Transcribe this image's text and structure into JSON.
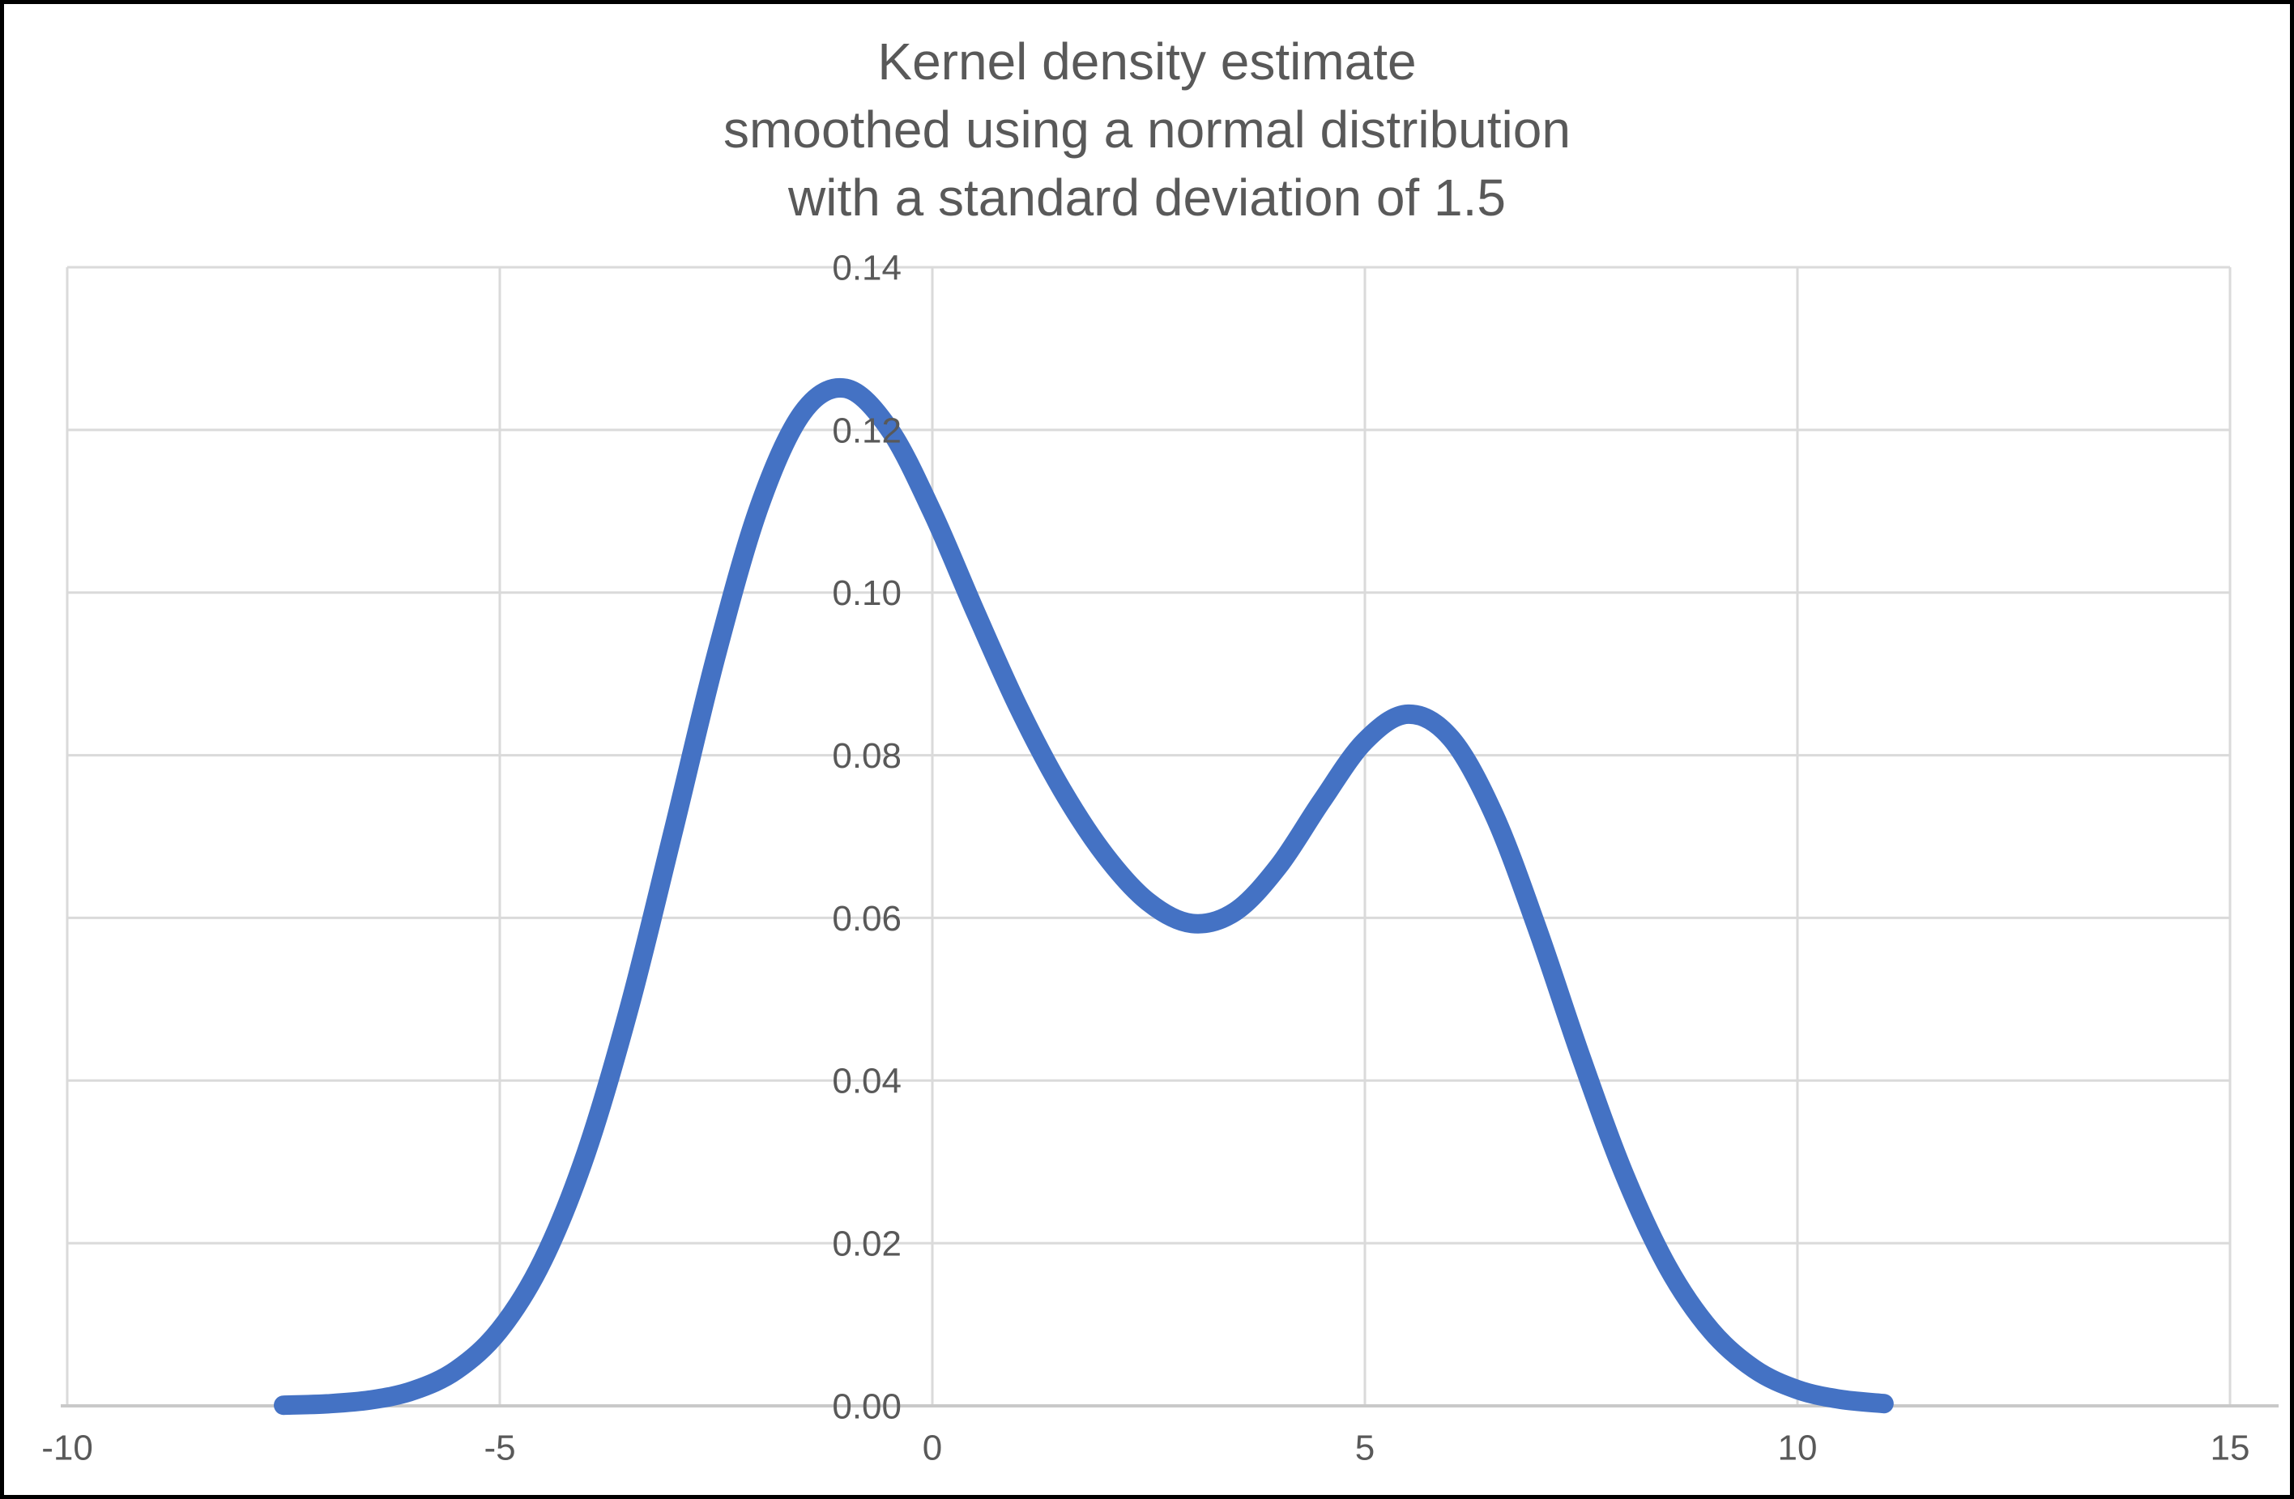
{
  "title": {
    "lines": [
      "Kernel density estimate",
      "smoothed using a normal distribution",
      "with a standard deviation of 1.5"
    ],
    "color": "#595959"
  },
  "chart_data": {
    "type": "line",
    "title": "Kernel density estimate smoothed using a normal distribution with a standard deviation of 1.5",
    "legend": "none",
    "grid": true,
    "x": [
      -7.5,
      -7,
      -6.5,
      -6,
      -5.5,
      -5,
      -4.5,
      -4,
      -3.5,
      -3,
      -2.5,
      -2,
      -1.5,
      -1,
      -0.5,
      0,
      0.5,
      1,
      1.5,
      2,
      2.5,
      3,
      3.5,
      4,
      4.5,
      5,
      5.5,
      6,
      6.5,
      7,
      7.5,
      8,
      8.5,
      9,
      9.5,
      10,
      10.5,
      11
    ],
    "series": [
      {
        "name": "Kernel density estimate",
        "values": [
          8e-05,
          0.00025,
          0.00072,
          0.00188,
          0.00441,
          0.00935,
          0.01794,
          0.03115,
          0.04909,
          0.07042,
          0.09221,
          0.11059,
          0.12213,
          0.1251,
          0.12014,
          0.10988,
          0.09758,
          0.08579,
          0.07573,
          0.06767,
          0.06193,
          0.05932,
          0.06077,
          0.06633,
          0.07435,
          0.08173,
          0.08505,
          0.08202,
          0.07252,
          0.05846,
          0.04282,
          0.02843,
          0.01708,
          0.00928,
          0.00454,
          0.002,
          0.0008,
          0.00028
        ],
        "color": "#4472C4",
        "stroke_width": 24
      }
    ],
    "smoothing": {
      "kernel": "normal distribution",
      "standard_deviation": 1.5
    },
    "x_axis": {
      "min": -10,
      "max": 15,
      "ticks": [
        -10,
        -5,
        0,
        5,
        10,
        15
      ],
      "tick_labels": [
        "-10",
        "-5",
        "0",
        "5",
        "10",
        "15"
      ]
    },
    "y_axis": {
      "min": 0,
      "max": 0.14,
      "ticks": [
        0,
        0.02,
        0.04,
        0.06,
        0.08,
        0.1,
        0.12,
        0.14
      ],
      "tick_labels": [
        "0.00",
        "0.02",
        "0.04",
        "0.06",
        "0.08",
        "0.10",
        "0.12",
        "0.14"
      ]
    },
    "xlabel": "",
    "ylabel": "",
    "colors": {
      "gridline": "#DADADA",
      "axis_line": "#C9C9C9",
      "tick_label": "#595959",
      "background": "#FFFFFF",
      "frame": "#000000"
    }
  }
}
